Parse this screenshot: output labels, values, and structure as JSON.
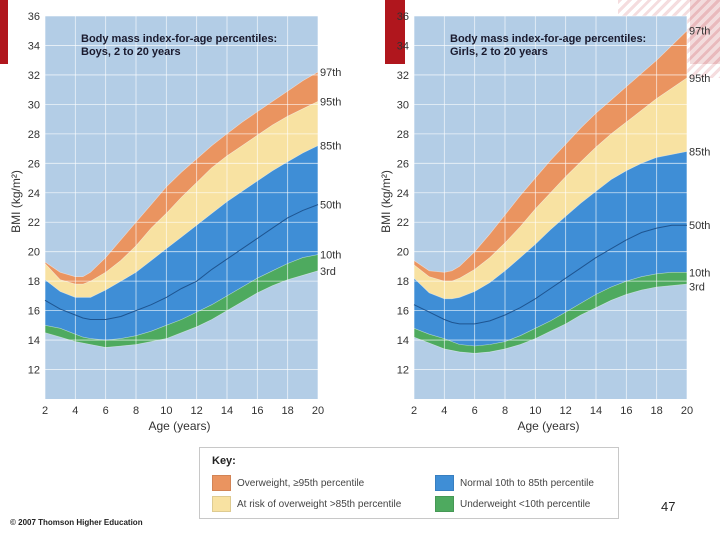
{
  "colors": {
    "background": "#b3cde6",
    "overweight": "#ea9460",
    "at_risk": "#f8e2a2",
    "normal": "#3f8ed6",
    "underweight": "#4eaa5f",
    "grid": "#ffffff",
    "median": "#1b4f8a"
  },
  "chart_data": [
    {
      "type": "area",
      "title": "Body mass index-for-age percentiles:",
      "subtitle": "Boys, 2 to 20 years",
      "xlabel": "Age (years)",
      "ylabel": "BMI (kg/m²)",
      "xlim": [
        2,
        20
      ],
      "ylim": [
        10,
        36
      ],
      "x_ticks": [
        "2",
        "4",
        "6",
        "8",
        "10",
        "12",
        "14",
        "16",
        "18",
        "20"
      ],
      "y_ticks": [
        "12",
        "14",
        "16",
        "18",
        "20",
        "22",
        "24",
        "26",
        "28",
        "30",
        "32",
        "34",
        "36"
      ],
      "x": [
        2,
        3,
        4,
        4.5,
        5,
        6,
        7,
        8,
        9,
        10,
        11,
        12,
        13,
        14,
        15,
        16,
        17,
        18,
        19,
        20
      ],
      "series": [
        {
          "name": "97th",
          "label": "97th",
          "values": [
            19.3,
            18.6,
            18.3,
            18.3,
            18.6,
            19.6,
            20.8,
            22.0,
            23.2,
            24.4,
            25.4,
            26.3,
            27.2,
            28.0,
            28.8,
            29.5,
            30.2,
            30.9,
            31.6,
            32.2
          ]
        },
        {
          "name": "95th",
          "label": "95th",
          "values": [
            19.2,
            18.1,
            17.8,
            17.8,
            18.0,
            18.6,
            19.4,
            20.4,
            21.6,
            22.6,
            23.7,
            24.7,
            25.7,
            26.5,
            27.2,
            27.9,
            28.6,
            29.2,
            29.7,
            30.2
          ]
        },
        {
          "name": "85th",
          "label": "85th",
          "values": [
            18.1,
            17.3,
            16.9,
            16.9,
            16.9,
            17.4,
            18.0,
            18.6,
            19.4,
            20.2,
            21.0,
            21.8,
            22.6,
            23.4,
            24.1,
            24.8,
            25.5,
            26.1,
            26.7,
            27.2
          ]
        },
        {
          "name": "50th",
          "label": "50th",
          "values": [
            16.7,
            16.1,
            15.7,
            15.5,
            15.4,
            15.4,
            15.6,
            16.0,
            16.4,
            16.9,
            17.5,
            18.0,
            18.8,
            19.5,
            20.2,
            20.9,
            21.6,
            22.3,
            22.8,
            23.2
          ]
        },
        {
          "name": "10th",
          "label": "10th",
          "values": [
            15.0,
            14.8,
            14.4,
            14.2,
            14.1,
            14.0,
            14.1,
            14.3,
            14.6,
            15.0,
            15.4,
            15.9,
            16.4,
            17.0,
            17.6,
            18.2,
            18.7,
            19.2,
            19.6,
            19.8
          ]
        },
        {
          "name": "3rd",
          "label": "3rd",
          "values": [
            14.5,
            14.2,
            13.9,
            13.8,
            13.7,
            13.5,
            13.6,
            13.7,
            13.9,
            14.1,
            14.5,
            14.9,
            15.4,
            16.0,
            16.6,
            17.2,
            17.7,
            18.1,
            18.4,
            18.7
          ]
        }
      ]
    },
    {
      "type": "area",
      "title": "Body mass index-for-age percentiles:",
      "subtitle": "Girls, 2 to 20 years",
      "xlabel": "Age (years)",
      "ylabel": "BMI (kg/m²)",
      "xlim": [
        2,
        20
      ],
      "ylim": [
        10,
        36
      ],
      "x_ticks": [
        "2",
        "4",
        "6",
        "8",
        "10",
        "12",
        "14",
        "16",
        "18",
        "20"
      ],
      "y_ticks": [
        "12",
        "14",
        "16",
        "18",
        "20",
        "22",
        "24",
        "26",
        "28",
        "30",
        "32",
        "34",
        "36"
      ],
      "x": [
        2,
        3,
        4,
        4.5,
        5,
        6,
        7,
        8,
        9,
        10,
        11,
        12,
        13,
        14,
        15,
        16,
        17,
        18,
        19,
        20
      ],
      "series": [
        {
          "name": "97th",
          "label": "97th",
          "values": [
            19.4,
            18.7,
            18.6,
            18.7,
            19.0,
            20.0,
            21.2,
            22.5,
            23.8,
            25.0,
            26.2,
            27.3,
            28.4,
            29.4,
            30.3,
            31.2,
            32.1,
            33.0,
            34.0,
            35.0
          ]
        },
        {
          "name": "95th",
          "label": "95th",
          "values": [
            19.1,
            18.3,
            18.0,
            18.0,
            18.2,
            18.8,
            19.6,
            20.6,
            21.7,
            22.9,
            24.0,
            25.1,
            26.1,
            27.1,
            28.0,
            28.8,
            29.6,
            30.4,
            31.1,
            31.8
          ]
        },
        {
          "name": "85th",
          "label": "85th",
          "values": [
            18.2,
            17.2,
            16.8,
            16.8,
            16.9,
            17.3,
            17.9,
            18.7,
            19.6,
            20.5,
            21.5,
            22.4,
            23.3,
            24.1,
            24.9,
            25.5,
            26.0,
            26.4,
            26.6,
            26.8
          ]
        },
        {
          "name": "50th",
          "label": "50th",
          "values": [
            16.4,
            15.9,
            15.4,
            15.2,
            15.1,
            15.1,
            15.3,
            15.7,
            16.2,
            16.8,
            17.5,
            18.2,
            18.9,
            19.6,
            20.2,
            20.8,
            21.3,
            21.6,
            21.8,
            21.8
          ]
        },
        {
          "name": "10th",
          "label": "10th",
          "values": [
            14.8,
            14.4,
            14.1,
            13.9,
            13.7,
            13.6,
            13.7,
            13.9,
            14.3,
            14.8,
            15.3,
            15.9,
            16.5,
            17.1,
            17.6,
            18.0,
            18.3,
            18.5,
            18.6,
            18.6
          ]
        },
        {
          "name": "3rd",
          "label": "3rd",
          "values": [
            14.2,
            13.8,
            13.4,
            13.3,
            13.2,
            13.1,
            13.2,
            13.4,
            13.7,
            14.1,
            14.6,
            15.1,
            15.7,
            16.2,
            16.7,
            17.1,
            17.4,
            17.6,
            17.7,
            17.8
          ]
        }
      ]
    }
  ],
  "key": {
    "title": "Key:",
    "overweight": "Overweight, ≥95th percentile",
    "at_risk": "At risk of overweight >85th percentile",
    "normal": "Normal 10th to 85th percentile",
    "underweight": "Underweight <10th percentile"
  },
  "footer": {
    "copyright": "© 2007 Thomson Higher Education",
    "page_number": "47"
  }
}
